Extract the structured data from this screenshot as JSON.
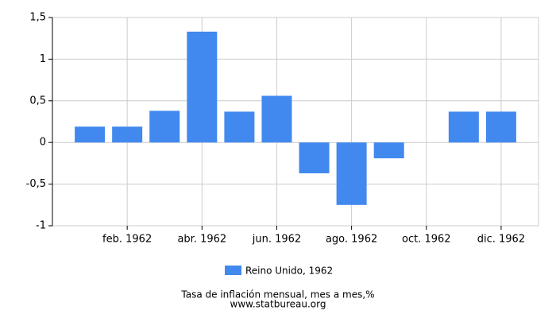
{
  "chart_data": {
    "type": "bar",
    "title": "Tasa de inflación mensual, mes a mes,%",
    "source": "www.statbureau.org",
    "categories": [
      null,
      "feb. 1962",
      null,
      "abr. 1962",
      null,
      "jun. 1962",
      null,
      "ago. 1962",
      null,
      "oct. 1962",
      null,
      "dic. 1962"
    ],
    "series": [
      {
        "name": "Reino Unido, 1962",
        "color": "#4189ee",
        "values": [
          0.19,
          0.19,
          0.38,
          1.33,
          0.37,
          0.56,
          -0.37,
          -0.75,
          -0.19,
          0,
          0.37,
          0.37
        ]
      }
    ],
    "ylim": [
      -1,
      1.5
    ],
    "yticks": [
      -1,
      {
        "value": -0.5,
        "label": "-0,5"
      },
      0,
      {
        "value": 0.5,
        "label": "0,5"
      },
      1,
      {
        "value": 1.5,
        "label": "1,5"
      }
    ],
    "grid": true
  }
}
